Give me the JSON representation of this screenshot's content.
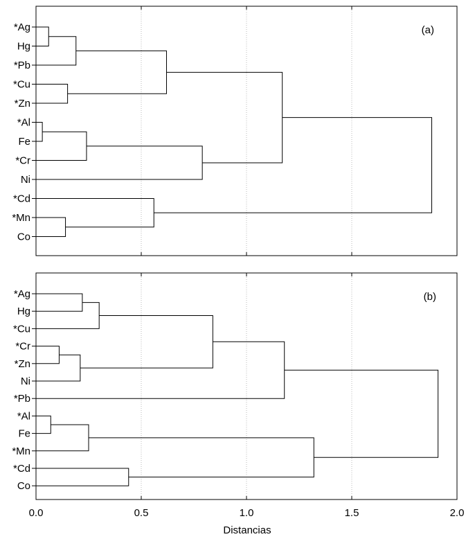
{
  "chart_data": {
    "type": "dendrogram",
    "xlabel": "Distancias",
    "xlim": [
      0.0,
      2.0
    ],
    "x_ticks": [
      "0.0",
      "0.5",
      "1.0",
      "1.5",
      "2.0"
    ],
    "grid": "vertical dotted",
    "panels": [
      {
        "tag": "(a)",
        "leaves": [
          "*Ag",
          "Hg",
          "*Pb",
          "*Cu",
          "*Zn",
          "*Al",
          "Fe",
          "*Cr",
          "Ni",
          "*Cd",
          "*Mn",
          "Co"
        ],
        "merges": [
          {
            "a": "*Al",
            "b": "Fe",
            "height": 0.03
          },
          {
            "a": "*Ag",
            "b": "Hg",
            "height": 0.06
          },
          {
            "a": "*Mn",
            "b": "Co",
            "height": 0.14
          },
          {
            "a": "*Cu",
            "b": "*Zn",
            "height": 0.15
          },
          {
            "a": "*Ag+Hg",
            "b": "*Pb",
            "height": 0.19
          },
          {
            "a": "*Al+Fe",
            "b": "*Cr",
            "height": 0.24
          },
          {
            "a": "*Cd",
            "b": "*Mn+Co",
            "height": 0.56
          },
          {
            "a": "*Ag+Hg+*Pb",
            "b": "*Cu+*Zn",
            "height": 0.62
          },
          {
            "a": "*Al+Fe+*Cr",
            "b": "Ni",
            "height": 0.79
          },
          {
            "a": "*Ag..*Zn",
            "b": "*Al..Ni",
            "height": 1.17
          },
          {
            "a": "*Ag..Ni",
            "b": "*Cd..Co",
            "height": 1.88
          }
        ]
      },
      {
        "tag": "(b)",
        "leaves": [
          "*Ag",
          "Hg",
          "*Cu",
          "*Cr",
          "*Zn",
          "Ni",
          "*Pb",
          "*Al",
          "Fe",
          "*Mn",
          "*Cd",
          "Co"
        ],
        "merges": [
          {
            "a": "*Al",
            "b": "Fe",
            "height": 0.07
          },
          {
            "a": "*Cr",
            "b": "*Zn",
            "height": 0.11
          },
          {
            "a": "*Cr+*Zn",
            "b": "Ni",
            "height": 0.21
          },
          {
            "a": "*Ag",
            "b": "Hg",
            "height": 0.22
          },
          {
            "a": "*Al+Fe",
            "b": "*Mn",
            "height": 0.25
          },
          {
            "a": "*Ag+Hg",
            "b": "*Cu",
            "height": 0.3
          },
          {
            "a": "*Cd",
            "b": "Co",
            "height": 0.44
          },
          {
            "a": "*Ag+Hg+*Cu",
            "b": "*Cr+*Zn+Ni",
            "height": 0.84
          },
          {
            "a": "*Ag..Ni",
            "b": "*Pb",
            "height": 1.18
          },
          {
            "a": "*Al+Fe+*Mn",
            "b": "*Cd+Co",
            "height": 1.32
          },
          {
            "a": "*Ag..*Pb",
            "b": "*Al..Co",
            "height": 1.91
          }
        ]
      }
    ]
  }
}
